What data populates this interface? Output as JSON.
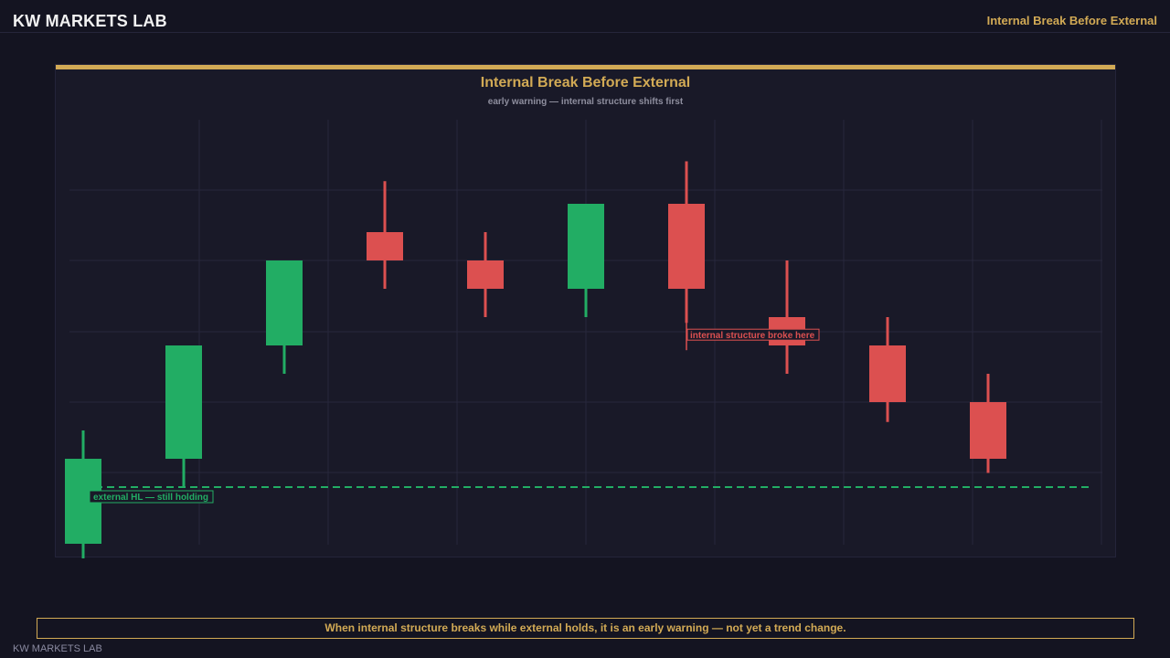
{
  "header": {
    "brand": "KW MARKETS LAB",
    "page_title": "Internal Break Before External"
  },
  "chart_data": {
    "type": "candlestick",
    "title": "Internal Break Before External",
    "subtitle": "early warning — internal structure shifts first",
    "xlabel": "",
    "ylabel": "",
    "ylim": [
      -2,
      13.5
    ],
    "grid": true,
    "colors": {
      "up": "#22ad64",
      "down": "#dc5050",
      "support": "#22ad64",
      "grid": "#28283c"
    },
    "candles": [
      {
        "open": 0,
        "high": 4,
        "low": -1,
        "close": 3
      },
      {
        "open": 3,
        "high": 7,
        "low": 2,
        "close": 7
      },
      {
        "open": 7,
        "high": 10,
        "low": 6,
        "close": 10
      },
      {
        "open": 11,
        "high": 12.8,
        "low": 9,
        "close": 10
      },
      {
        "open": 10,
        "high": 11,
        "low": 8,
        "close": 9
      },
      {
        "open": 9,
        "high": 12,
        "low": 8,
        "close": 12
      },
      {
        "open": 12,
        "high": 13.5,
        "low": 7.8,
        "close": 9
      },
      {
        "open": 8,
        "high": 10,
        "low": 6,
        "close": 7
      },
      {
        "open": 7,
        "high": 8,
        "low": 4.3,
        "close": 5
      },
      {
        "open": 5,
        "high": 6,
        "low": 2.5,
        "close": 3
      }
    ],
    "support_level": 2,
    "annotations": {
      "external": "external HL — still holding",
      "internal": "internal structure broke here"
    }
  },
  "note": "When internal structure breaks while external holds, it is an early warning — not yet a trend change.",
  "footer": {
    "brand": "KW MARKETS LAB"
  }
}
